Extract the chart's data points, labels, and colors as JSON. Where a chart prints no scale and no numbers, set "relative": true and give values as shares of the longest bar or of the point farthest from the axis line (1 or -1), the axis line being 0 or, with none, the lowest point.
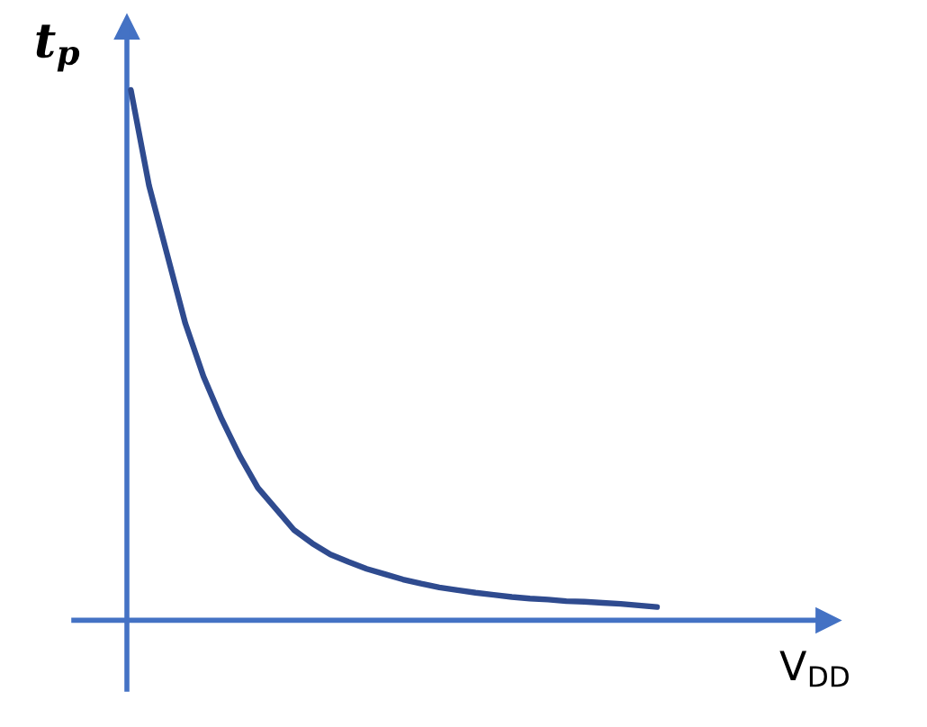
{
  "chart_data": {
    "type": "line",
    "relative": true,
    "xlabel": "V$_{DD}$",
    "ylabel": "t$_{p}$",
    "categories": [
      null,
      null,
      null,
      null,
      null,
      null,
      null,
      null,
      null,
      null,
      null,
      null,
      null,
      null,
      null,
      null,
      null,
      null,
      null,
      null,
      null,
      null,
      null,
      null,
      null,
      null,
      null,
      null,
      null,
      null
    ],
    "series": [
      {
        "color": "#2f4b8f",
        "values": [
          1,
          0.82,
          0.69,
          0.56,
          0.46,
          0.38,
          0.31,
          0.25,
          0.21,
          0.17,
          0.145,
          0.124,
          0.11,
          0.097,
          0.087,
          0.077,
          0.069,
          0.062,
          0.057,
          0.052,
          0.048,
          0.044,
          0.041,
          0.039,
          0.036,
          0.035,
          0.033,
          0.031,
          0.028,
          0.025
        ]
      }
    ]
  }
}
